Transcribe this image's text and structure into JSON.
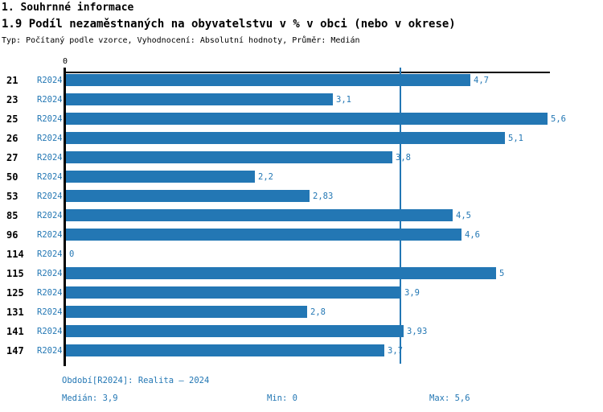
{
  "header": {
    "title1": "1. Souhrnné informace",
    "title2": "1.9 Podíl nezaměstnaných na obyvatelstvu v % v obci (nebo v okrese)",
    "subtitle": "Typ: Počítaný podle vzorce, Vyhodnocení: Absolutní hodnoty, Průměr: Medián"
  },
  "chart_data": {
    "type": "bar",
    "orientation": "horizontal",
    "title": "1.9 Podíl nezaměstnaných na obyvatelstvu v % v obci (nebo v okrese)",
    "categories": [
      "21",
      "23",
      "25",
      "26",
      "27",
      "50",
      "53",
      "85",
      "96",
      "114",
      "115",
      "125",
      "131",
      "141",
      "147"
    ],
    "series_label": "R2024",
    "values": [
      4.7,
      3.1,
      5.6,
      5.1,
      3.8,
      2.2,
      2.83,
      4.5,
      4.6,
      0,
      5,
      3.9,
      2.8,
      3.93,
      3.7
    ],
    "value_labels": [
      "4,7",
      "3,1",
      "5,6",
      "5,1",
      "3,8",
      "2,2",
      "2,83",
      "4,5",
      "4,6",
      "0",
      "5",
      "3,9",
      "2,8",
      "3,93",
      "3,7"
    ],
    "xlim": [
      0,
      5.6
    ],
    "x_axis_tick": "0",
    "median_line": 3.9,
    "bar_color": "#2377b4",
    "axis_color": "#000000",
    "legend_position": "none",
    "grid": false
  },
  "footer": {
    "period": "Období[R2024]: Realita – 2024",
    "median": "Medián: 3,9",
    "min": "Min: 0",
    "max": "Max: 5,6"
  }
}
